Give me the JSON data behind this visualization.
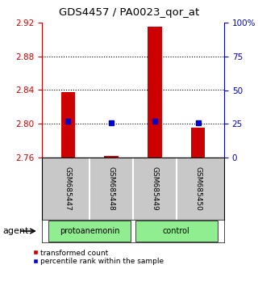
{
  "title": "GDS4457 / PA0023_qor_at",
  "samples": [
    "GSM685447",
    "GSM685448",
    "GSM685449",
    "GSM685450"
  ],
  "groups": [
    "protoanemonin",
    "protoanemonin",
    "control",
    "control"
  ],
  "bar_bottom": 2.76,
  "transformed_counts": [
    2.838,
    2.762,
    2.915,
    2.795
  ],
  "percentile_ranks": [
    27,
    26,
    27,
    26
  ],
  "ylim_left": [
    2.76,
    2.92
  ],
  "ylim_right": [
    0,
    100
  ],
  "yticks_left": [
    2.76,
    2.8,
    2.84,
    2.88,
    2.92
  ],
  "ytick_labels_right": [
    "0",
    "25",
    "50",
    "75",
    "100%"
  ],
  "yticks_right": [
    0,
    25,
    50,
    75,
    100
  ],
  "left_axis_color": "#cc0000",
  "right_axis_color": "#0000cc",
  "bar_color": "#cc0000",
  "marker_color": "#0000cc",
  "bg_plot": "#ffffff",
  "bg_label_area": "#c8c8c8",
  "group_color": "#90EE90",
  "legend_red_label": "transformed count",
  "legend_blue_label": "percentile rank within the sample",
  "agent_label": "agent",
  "grid_ticks": [
    2.8,
    2.84,
    2.88
  ]
}
